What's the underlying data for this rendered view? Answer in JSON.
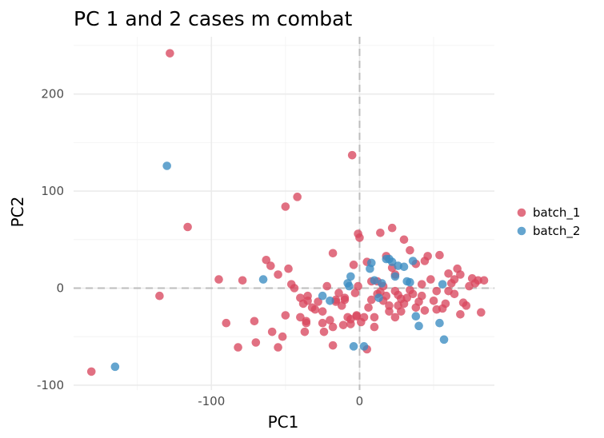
{
  "chart_data": {
    "type": "scatter",
    "title": "PC 1 and 2 cases m combat",
    "xlabel": "PC1",
    "ylabel": "PC2",
    "xlim": [
      -193,
      91
    ],
    "ylim": [
      -105,
      259
    ],
    "x_major_ticks": [
      -100,
      0
    ],
    "x_tick_labels": [
      "-100",
      "0"
    ],
    "y_major_ticks": [
      -100,
      0,
      100,
      200
    ],
    "y_tick_labels": [
      "-100",
      "0",
      "100",
      "200"
    ],
    "x_minor_ticks": [
      -150,
      -50,
      50
    ],
    "y_minor_ticks": [
      -50,
      50,
      150,
      250
    ],
    "reference_lines": {
      "x": 0,
      "y": 0,
      "style": "dashed"
    },
    "grid": true,
    "legend_position": "right",
    "legend": [
      {
        "label": "batch_1",
        "color": "#d9485f"
      },
      {
        "label": "batch_2",
        "color": "#3a8cc1"
      }
    ],
    "series": [
      {
        "name": "batch_1",
        "color": "#d9485f",
        "points": [
          [
            -181,
            -86
          ],
          [
            -128,
            242
          ],
          [
            -135,
            -8
          ],
          [
            -116,
            63
          ],
          [
            -95,
            9
          ],
          [
            -90,
            -36
          ],
          [
            -82,
            -61
          ],
          [
            -79,
            8
          ],
          [
            -71,
            -34
          ],
          [
            -70,
            -56
          ],
          [
            -63,
            29
          ],
          [
            -60,
            23
          ],
          [
            -59,
            -45
          ],
          [
            -55,
            14
          ],
          [
            -55,
            -61
          ],
          [
            -52,
            -50
          ],
          [
            -50,
            84
          ],
          [
            -50,
            -28
          ],
          [
            -48,
            20
          ],
          [
            -46,
            4
          ],
          [
            -44,
            0
          ],
          [
            -42,
            94
          ],
          [
            -40,
            -30
          ],
          [
            -40,
            -10
          ],
          [
            -38,
            -16
          ],
          [
            -37,
            -45
          ],
          [
            -36,
            -34
          ],
          [
            -36,
            -36
          ],
          [
            -35,
            -8
          ],
          [
            -35,
            -13
          ],
          [
            -32,
            -20
          ],
          [
            -30,
            -22
          ],
          [
            -28,
            -14
          ],
          [
            -25,
            -24
          ],
          [
            -25,
            -36
          ],
          [
            -24,
            -45
          ],
          [
            -22,
            2
          ],
          [
            -20,
            -33
          ],
          [
            -18,
            36
          ],
          [
            -18,
            -40
          ],
          [
            -18,
            -59
          ],
          [
            -16,
            -12
          ],
          [
            -16,
            -14
          ],
          [
            -14,
            -5
          ],
          [
            -12,
            -18
          ],
          [
            -11,
            -38
          ],
          [
            -10,
            -10
          ],
          [
            -10,
            -12
          ],
          [
            -8,
            -30
          ],
          [
            -6,
            -32
          ],
          [
            -6,
            -37
          ],
          [
            -4,
            24
          ],
          [
            -3,
            -5
          ],
          [
            -2,
            -28
          ],
          [
            -2,
            -29
          ],
          [
            -1,
            56
          ],
          [
            0,
            52
          ],
          [
            -5,
            137
          ],
          [
            1,
            -35
          ],
          [
            3,
            -30
          ],
          [
            5,
            -63
          ],
          [
            -1,
            2
          ],
          [
            5,
            27
          ],
          [
            6,
            -20
          ],
          [
            8,
            -12
          ],
          [
            8,
            7
          ],
          [
            10,
            -40
          ],
          [
            12,
            7
          ],
          [
            14,
            57
          ],
          [
            16,
            -13
          ],
          [
            18,
            33
          ],
          [
            20,
            -24
          ],
          [
            22,
            62
          ],
          [
            24,
            14
          ],
          [
            26,
            -18
          ],
          [
            28,
            -24
          ],
          [
            30,
            50
          ],
          [
            32,
            -10
          ],
          [
            34,
            39
          ],
          [
            36,
            -6
          ],
          [
            38,
            25
          ],
          [
            40,
            -14
          ],
          [
            42,
            4
          ],
          [
            44,
            28
          ],
          [
            46,
            33
          ],
          [
            48,
            9
          ],
          [
            50,
            -13
          ],
          [
            52,
            -3
          ],
          [
            54,
            34
          ],
          [
            56,
            -21
          ],
          [
            58,
            -16
          ],
          [
            60,
            -3
          ],
          [
            62,
            5
          ],
          [
            64,
            9
          ],
          [
            66,
            20
          ],
          [
            68,
            14
          ],
          [
            70,
            -15
          ],
          [
            72,
            -18
          ],
          [
            74,
            2
          ],
          [
            76,
            10
          ],
          [
            78,
            5
          ],
          [
            80,
            8
          ],
          [
            82,
            -25
          ],
          [
            84,
            8
          ],
          [
            42,
            -8
          ],
          [
            34,
            -2
          ],
          [
            30,
            -16
          ],
          [
            26,
            -7
          ],
          [
            24,
            -3
          ],
          [
            22,
            21
          ],
          [
            18,
            -8
          ],
          [
            16,
            2
          ],
          [
            14,
            -4
          ],
          [
            20,
            -18
          ],
          [
            10,
            -30
          ],
          [
            12,
            -6
          ],
          [
            24,
            -30
          ],
          [
            28,
            -11
          ],
          [
            38,
            -20
          ],
          [
            44,
            -23
          ],
          [
            52,
            -22
          ],
          [
            60,
            15
          ],
          [
            64,
            -6
          ],
          [
            68,
            -27
          ]
        ]
      },
      {
        "name": "batch_2",
        "color": "#3a8cc1",
        "points": [
          [
            -165,
            -81
          ],
          [
            -130,
            126
          ],
          [
            -65,
            9
          ],
          [
            -25,
            -8
          ],
          [
            -20,
            -13
          ],
          [
            -8,
            5
          ],
          [
            -7,
            2
          ],
          [
            -6,
            12
          ],
          [
            -4,
            -60
          ],
          [
            3,
            -60
          ],
          [
            7,
            20
          ],
          [
            8,
            26
          ],
          [
            10,
            8
          ],
          [
            13,
            -10
          ],
          [
            15,
            5
          ],
          [
            18,
            30
          ],
          [
            20,
            30
          ],
          [
            22,
            27
          ],
          [
            24,
            12
          ],
          [
            26,
            23
          ],
          [
            30,
            22
          ],
          [
            32,
            7
          ],
          [
            34,
            6
          ],
          [
            36,
            28
          ],
          [
            38,
            -29
          ],
          [
            40,
            -39
          ],
          [
            54,
            -36
          ],
          [
            57,
            -53
          ],
          [
            56,
            4
          ]
        ]
      }
    ]
  }
}
